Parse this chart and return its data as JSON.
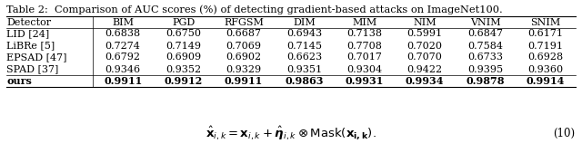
{
  "title": "Table 2:  Comparison of AUC scores (%) of detecting gradient-based attacks on ImageNet100.",
  "columns": [
    "Detector",
    "BIM",
    "PGD",
    "RFGSM",
    "DIM",
    "MIM",
    "NIM",
    "VNIM",
    "SNIM"
  ],
  "rows": [
    {
      "detector": "LID [24]",
      "values": [
        "0.6838",
        "0.6750",
        "0.6687",
        "0.6943",
        "0.7138",
        "0.5991",
        "0.6847",
        "0.6171"
      ],
      "bold": false
    },
    {
      "detector": "LiBRe [5]",
      "values": [
        "0.7274",
        "0.7149",
        "0.7069",
        "0.7145",
        "0.7708",
        "0.7020",
        "0.7584",
        "0.7191"
      ],
      "bold": false
    },
    {
      "detector": "EPSAD [47]",
      "values": [
        "0.6792",
        "0.6909",
        "0.6902",
        "0.6623",
        "0.7017",
        "0.7070",
        "0.6733",
        "0.6928"
      ],
      "bold": false
    },
    {
      "detector": "SPAD [37]",
      "values": [
        "0.9346",
        "0.9352",
        "0.9329",
        "0.9351",
        "0.9304",
        "0.9422",
        "0.9395",
        "0.9360"
      ],
      "bold": false
    },
    {
      "detector": "ours",
      "values": [
        "0.9911",
        "0.9912",
        "0.9911",
        "0.9863",
        "0.9931",
        "0.9934",
        "0.9878",
        "0.9914"
      ],
      "bold": true
    }
  ],
  "eq_str": "$\\hat{\\mathbf{x}}_{i,k} = \\mathbf{x}_{i,k} + \\hat{\\boldsymbol{\\eta}}_{i,k} \\otimes \\mathrm{Mask}(\\mathbf{x_{i,k}}).$",
  "eq_number": "(10)",
  "bg_color": "#ffffff",
  "title_font_size": 8.2,
  "table_font_size": 8.0,
  "eq_font_size": 9.5
}
